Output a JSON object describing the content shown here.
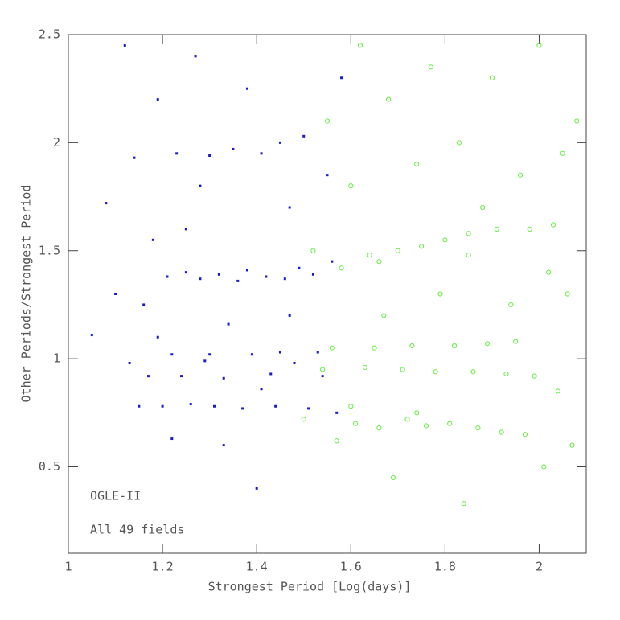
{
  "chart_data": {
    "type": "scatter",
    "x_label": "Strongest Period [Log(days)]",
    "y_label": "Other Periods/Strongest Period",
    "annotations": [
      "OGLE-II",
      "All 49 fields"
    ],
    "xlim": [
      1,
      2.1
    ],
    "ylim": [
      0.1,
      2.5
    ],
    "xticks": [
      1,
      1.2,
      1.4,
      1.6,
      1.8,
      2
    ],
    "yticks": [
      0.5,
      1,
      1.5,
      2,
      2.5
    ],
    "series": [
      {
        "color": "#1a1acc",
        "marker": "dot",
        "x": [
          1.05,
          1.08,
          1.1,
          1.12,
          1.13,
          1.14,
          1.15,
          1.16,
          1.17,
          1.18,
          1.19,
          1.2,
          1.21,
          1.22,
          1.23,
          1.24,
          1.25,
          1.26,
          1.27,
          1.28,
          1.29,
          1.3,
          1.31,
          1.32,
          1.33,
          1.34,
          1.35,
          1.36,
          1.37,
          1.38,
          1.39,
          1.4,
          1.41,
          1.42,
          1.43,
          1.44,
          1.45,
          1.46,
          1.47,
          1.48,
          1.49,
          1.5,
          1.51,
          1.52,
          1.53,
          1.54,
          1.55,
          1.56,
          1.57,
          1.58,
          1.22,
          1.3,
          1.45,
          1.28,
          1.38,
          1.33,
          1.47,
          1.19,
          1.25,
          1.41
        ],
        "values": [
          1.11,
          1.72,
          1.3,
          2.45,
          0.98,
          1.93,
          0.78,
          1.25,
          0.92,
          1.55,
          2.2,
          0.78,
          1.38,
          0.63,
          1.95,
          0.92,
          1.4,
          0.79,
          2.4,
          1.37,
          0.99,
          1.94,
          0.78,
          1.39,
          0.91,
          1.16,
          1.97,
          1.36,
          0.77,
          1.41,
          1.02,
          0.4,
          1.95,
          1.38,
          0.93,
          0.78,
          2.0,
          1.37,
          1.7,
          0.98,
          1.42,
          2.03,
          0.77,
          1.39,
          1.03,
          0.92,
          1.85,
          1.45,
          0.75,
          2.3,
          1.02,
          1.02,
          1.03,
          1.8,
          2.25,
          0.6,
          1.2,
          1.1,
          1.6,
          0.86
        ]
      },
      {
        "color": "#66ee44",
        "marker": "circle",
        "x": [
          1.5,
          1.52,
          1.54,
          1.55,
          1.56,
          1.57,
          1.58,
          1.6,
          1.61,
          1.62,
          1.63,
          1.64,
          1.65,
          1.66,
          1.67,
          1.68,
          1.69,
          1.7,
          1.71,
          1.72,
          1.73,
          1.74,
          1.75,
          1.76,
          1.77,
          1.78,
          1.79,
          1.8,
          1.81,
          1.82,
          1.83,
          1.84,
          1.85,
          1.86,
          1.87,
          1.88,
          1.89,
          1.9,
          1.91,
          1.92,
          1.93,
          1.94,
          1.95,
          1.96,
          1.97,
          1.98,
          1.99,
          2.0,
          2.01,
          2.02,
          2.03,
          2.04,
          2.05,
          2.06,
          2.07,
          2.08,
          1.66,
          1.74,
          1.85,
          1.6
        ],
        "values": [
          0.72,
          1.5,
          0.95,
          2.1,
          1.05,
          0.62,
          1.42,
          1.8,
          0.7,
          2.45,
          0.96,
          1.48,
          1.05,
          0.68,
          1.2,
          2.2,
          0.45,
          1.5,
          0.95,
          0.72,
          1.06,
          1.9,
          1.52,
          0.69,
          2.35,
          0.94,
          1.3,
          1.55,
          0.7,
          1.06,
          2.0,
          0.33,
          1.58,
          0.94,
          0.68,
          1.7,
          1.07,
          2.3,
          1.6,
          0.66,
          0.93,
          1.25,
          1.08,
          1.85,
          0.65,
          1.6,
          0.92,
          2.45,
          0.5,
          1.4,
          1.62,
          0.85,
          1.95,
          1.3,
          0.6,
          2.1,
          1.45,
          0.75,
          1.48,
          0.78
        ]
      }
    ]
  }
}
